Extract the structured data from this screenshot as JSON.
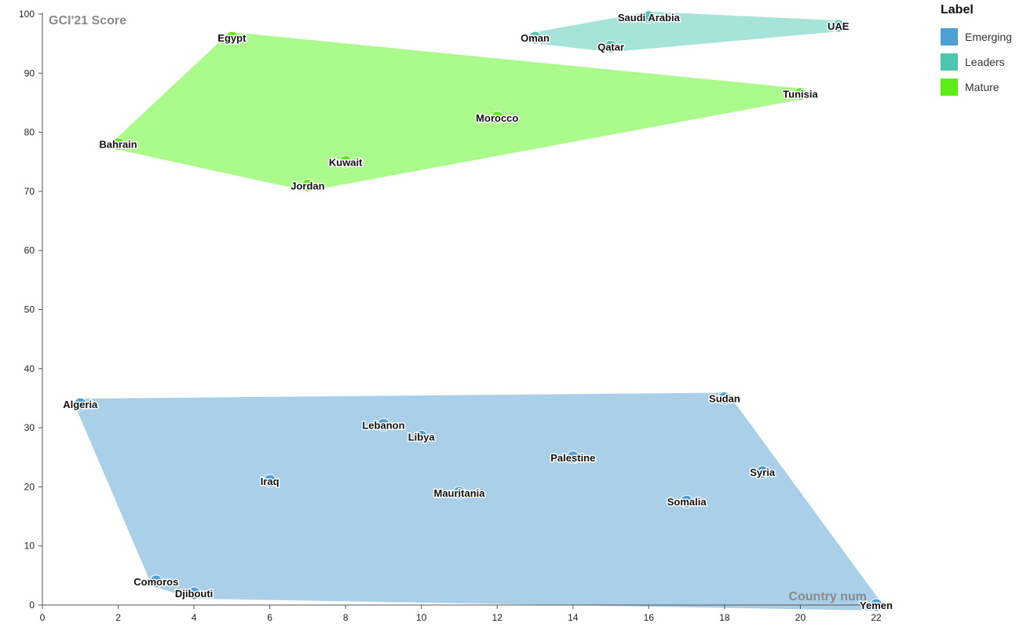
{
  "chart_data": {
    "type": "scatter",
    "title": "",
    "xlabel": "Country num",
    "ylabel": "GCI'21 Score",
    "xlim": [
      0,
      22
    ],
    "ylim": [
      0,
      100
    ],
    "xticks": [
      0,
      2,
      4,
      6,
      8,
      10,
      12,
      14,
      16,
      18,
      20,
      22
    ],
    "yticks": [
      0,
      10,
      20,
      30,
      40,
      50,
      60,
      70,
      80,
      90,
      100
    ],
    "grid": false,
    "hulls": true,
    "legend": {
      "title": "Label",
      "placement": "top-right",
      "items": [
        {
          "label": "Emerging",
          "color": "#4e9fd6"
        },
        {
          "label": "Leaders",
          "color": "#4fc4b1"
        },
        {
          "label": "Mature",
          "color": "#5ced14"
        }
      ]
    },
    "series": [
      {
        "name": "Emerging",
        "color": "#4e9fd6",
        "fill": "#a9d0e8",
        "points": [
          {
            "label": "Algeria",
            "x": 1,
            "y": 34
          },
          {
            "label": "Comoros",
            "x": 3,
            "y": 4
          },
          {
            "label": "Djibouti",
            "x": 4,
            "y": 2
          },
          {
            "label": "Iraq",
            "x": 6,
            "y": 21
          },
          {
            "label": "Lebanon",
            "x": 9,
            "y": 30.5
          },
          {
            "label": "Libya",
            "x": 10,
            "y": 28.5
          },
          {
            "label": "Mauritania",
            "x": 11,
            "y": 19
          },
          {
            "label": "Palestine",
            "x": 14,
            "y": 25
          },
          {
            "label": "Somalia",
            "x": 17,
            "y": 17.5
          },
          {
            "label": "Sudan",
            "x": 18,
            "y": 35
          },
          {
            "label": "Syria",
            "x": 19,
            "y": 22.5
          },
          {
            "label": "Yemen",
            "x": 22,
            "y": 0
          }
        ]
      },
      {
        "name": "Leaders",
        "color": "#4fc4b1",
        "fill": "#a6e3d8",
        "points": [
          {
            "label": "Oman",
            "x": 13,
            "y": 96
          },
          {
            "label": "Qatar",
            "x": 15,
            "y": 94.5
          },
          {
            "label": "Saudi Arabia",
            "x": 16,
            "y": 99.5
          },
          {
            "label": "UAE",
            "x": 21,
            "y": 98
          }
        ]
      },
      {
        "name": "Mature",
        "color": "#5ced14",
        "fill": "#abfb8c",
        "points": [
          {
            "label": "Bahrain",
            "x": 2,
            "y": 78
          },
          {
            "label": "Egypt",
            "x": 5,
            "y": 96
          },
          {
            "label": "Jordan",
            "x": 7,
            "y": 71
          },
          {
            "label": "Kuwait",
            "x": 8,
            "y": 75
          },
          {
            "label": "Morocco",
            "x": 12,
            "y": 82.5
          },
          {
            "label": "Tunisia",
            "x": 20,
            "y": 86.5
          }
        ]
      }
    ]
  }
}
